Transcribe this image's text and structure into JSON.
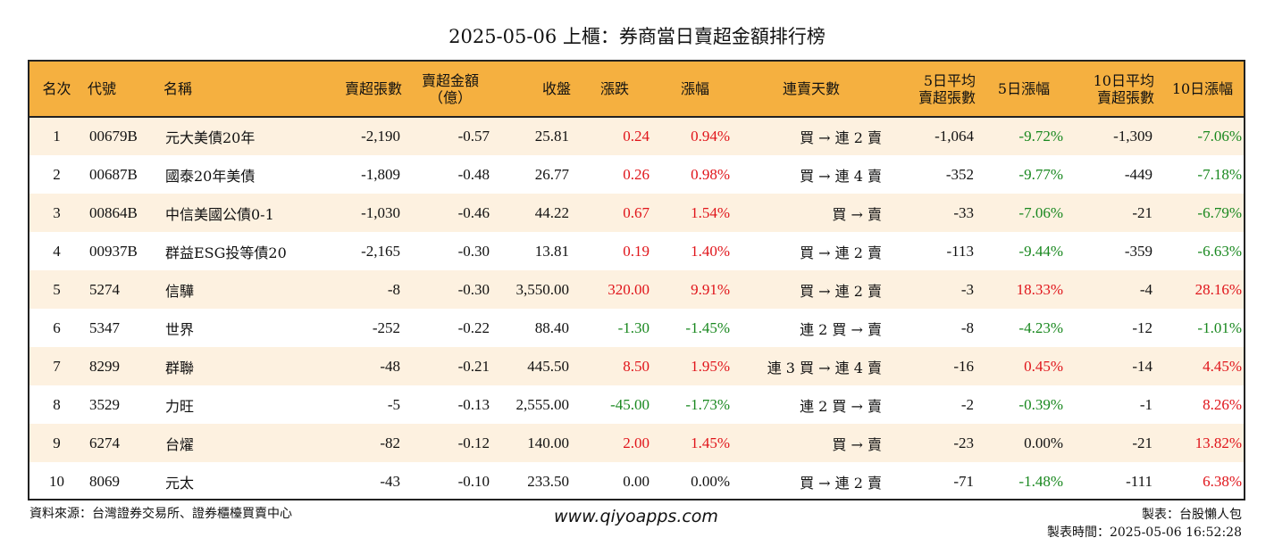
{
  "title": "2025-05-06 上櫃：券商當日賣超金額排行榜",
  "colors": {
    "header_bg": "#f5b040",
    "row_alt_bg": "#fdf1e0",
    "up": "#e0141a",
    "down": "#19881f",
    "neutral": "#111111"
  },
  "columns": [
    "名次",
    "代號",
    "名稱",
    "賣超張數",
    "賣超金額\n（億）",
    "收盤",
    "漲跌",
    "漲幅",
    "連賣天數",
    "5日平均\n賣超張數",
    "5日漲幅",
    "10日平均\n賣超張數",
    "10日漲幅"
  ],
  "rows": [
    {
      "rank": "1",
      "code": "00679B",
      "name": "元大美債20年",
      "sell_lots": "-2,190",
      "sell_amount": "-0.57",
      "close": "25.81",
      "change": "0.24",
      "change_dir": "red",
      "pct": "0.94%",
      "pct_dir": "red",
      "streak": "買 → 連 2 賣",
      "avg5": "-1,064",
      "pct5": "-9.72%",
      "pct5_dir": "green",
      "avg10": "-1,309",
      "pct10": "-7.06%",
      "pct10_dir": "green"
    },
    {
      "rank": "2",
      "code": "00687B",
      "name": "國泰20年美債",
      "sell_lots": "-1,809",
      "sell_amount": "-0.48",
      "close": "26.77",
      "change": "0.26",
      "change_dir": "red",
      "pct": "0.98%",
      "pct_dir": "red",
      "streak": "買 → 連 4 賣",
      "avg5": "-352",
      "pct5": "-9.77%",
      "pct5_dir": "green",
      "avg10": "-449",
      "pct10": "-7.18%",
      "pct10_dir": "green"
    },
    {
      "rank": "3",
      "code": "00864B",
      "name": "中信美國公債0-1",
      "sell_lots": "-1,030",
      "sell_amount": "-0.46",
      "close": "44.22",
      "change": "0.67",
      "change_dir": "red",
      "pct": "1.54%",
      "pct_dir": "red",
      "streak": "買 → 賣",
      "avg5": "-33",
      "pct5": "-7.06%",
      "pct5_dir": "green",
      "avg10": "-21",
      "pct10": "-6.79%",
      "pct10_dir": "green"
    },
    {
      "rank": "4",
      "code": "00937B",
      "name": "群益ESG投等債20",
      "sell_lots": "-2,165",
      "sell_amount": "-0.30",
      "close": "13.81",
      "change": "0.19",
      "change_dir": "red",
      "pct": "1.40%",
      "pct_dir": "red",
      "streak": "買 → 連 2 賣",
      "avg5": "-113",
      "pct5": "-9.44%",
      "pct5_dir": "green",
      "avg10": "-359",
      "pct10": "-6.63%",
      "pct10_dir": "green"
    },
    {
      "rank": "5",
      "code": "5274",
      "name": "信驊",
      "sell_lots": "-8",
      "sell_amount": "-0.30",
      "close": "3,550.00",
      "change": "320.00",
      "change_dir": "red",
      "pct": "9.91%",
      "pct_dir": "red",
      "streak": "買 → 連 2 賣",
      "avg5": "-3",
      "pct5": "18.33%",
      "pct5_dir": "red",
      "avg10": "-4",
      "pct10": "28.16%",
      "pct10_dir": "red"
    },
    {
      "rank": "6",
      "code": "5347",
      "name": "世界",
      "sell_lots": "-252",
      "sell_amount": "-0.22",
      "close": "88.40",
      "change": "-1.30",
      "change_dir": "green",
      "pct": "-1.45%",
      "pct_dir": "green",
      "streak": "連 2 買 → 賣",
      "avg5": "-8",
      "pct5": "-4.23%",
      "pct5_dir": "green",
      "avg10": "-12",
      "pct10": "-1.01%",
      "pct10_dir": "green"
    },
    {
      "rank": "7",
      "code": "8299",
      "name": "群聯",
      "sell_lots": "-48",
      "sell_amount": "-0.21",
      "close": "445.50",
      "change": "8.50",
      "change_dir": "red",
      "pct": "1.95%",
      "pct_dir": "red",
      "streak": "連 3 買 → 連 4 賣",
      "avg5": "-16",
      "pct5": "0.45%",
      "pct5_dir": "red",
      "avg10": "-14",
      "pct10": "4.45%",
      "pct10_dir": "red"
    },
    {
      "rank": "8",
      "code": "3529",
      "name": "力旺",
      "sell_lots": "-5",
      "sell_amount": "-0.13",
      "close": "2,555.00",
      "change": "-45.00",
      "change_dir": "green",
      "pct": "-1.73%",
      "pct_dir": "green",
      "streak": "連 2 買 → 賣",
      "avg5": "-2",
      "pct5": "-0.39%",
      "pct5_dir": "green",
      "avg10": "-1",
      "pct10": "8.26%",
      "pct10_dir": "red"
    },
    {
      "rank": "9",
      "code": "6274",
      "name": "台燿",
      "sell_lots": "-82",
      "sell_amount": "-0.12",
      "close": "140.00",
      "change": "2.00",
      "change_dir": "red",
      "pct": "1.45%",
      "pct_dir": "red",
      "streak": "買 → 賣",
      "avg5": "-23",
      "pct5": "0.00%",
      "pct5_dir": "black",
      "avg10": "-21",
      "pct10": "13.82%",
      "pct10_dir": "red"
    },
    {
      "rank": "10",
      "code": "8069",
      "name": "元太",
      "sell_lots": "-43",
      "sell_amount": "-0.10",
      "close": "233.50",
      "change": "0.00",
      "change_dir": "black",
      "pct": "0.00%",
      "pct_dir": "black",
      "streak": "買 → 連 2 賣",
      "avg5": "-71",
      "pct5": "-1.48%",
      "pct5_dir": "green",
      "avg10": "-111",
      "pct10": "6.38%",
      "pct10_dir": "red"
    }
  ],
  "footer": {
    "source": "資料來源：台灣證券交易所、證券櫃檯買賣中心",
    "website": "www.qiyoapps.com",
    "maker": "製表：台股懶人包",
    "made_time": "製表時間：2025-05-06 16:52:28"
  }
}
